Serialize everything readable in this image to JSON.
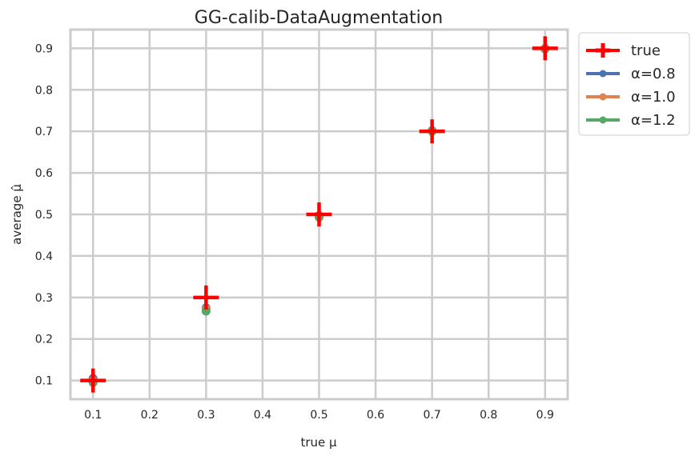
{
  "chart_data": {
    "type": "scatter",
    "title": "GG-calib-DataAugmentation",
    "xlabel": "true μ",
    "ylabel": "average μ̂",
    "xlim": [
      0.06,
      0.94
    ],
    "ylim": [
      0.055,
      0.945
    ],
    "xticks": [
      "0.1",
      "0.2",
      "0.3",
      "0.4",
      "0.5",
      "0.6",
      "0.7",
      "0.8",
      "0.9"
    ],
    "yticks": [
      "0.1",
      "0.2",
      "0.3",
      "0.4",
      "0.5",
      "0.6",
      "0.7",
      "0.8",
      "0.9"
    ],
    "grid": true,
    "legend_position": "outside-top-right",
    "series": [
      {
        "name": "true",
        "marker": "plus",
        "color": "#ff0000",
        "x": [
          0.1,
          0.3,
          0.5,
          0.7,
          0.9
        ],
        "y": [
          0.1,
          0.3,
          0.5,
          0.7,
          0.9
        ]
      },
      {
        "name": "α=0.8",
        "marker": "dot",
        "color": "#4c72b0",
        "x": [
          0.1,
          0.3,
          0.5,
          0.7,
          0.9
        ],
        "y": [
          0.105,
          0.275,
          0.497,
          0.702,
          0.9
        ]
      },
      {
        "name": "α=1.0",
        "marker": "dot",
        "color": "#dd8452",
        "x": [
          0.1,
          0.3,
          0.5,
          0.7,
          0.9
        ],
        "y": [
          0.1,
          0.272,
          0.495,
          0.701,
          0.899
        ]
      },
      {
        "name": "α=1.2",
        "marker": "dot",
        "color": "#55a868",
        "x": [
          0.1,
          0.3,
          0.5,
          0.7,
          0.9
        ],
        "y": [
          0.095,
          0.267,
          0.493,
          0.7,
          0.898
        ]
      }
    ]
  }
}
